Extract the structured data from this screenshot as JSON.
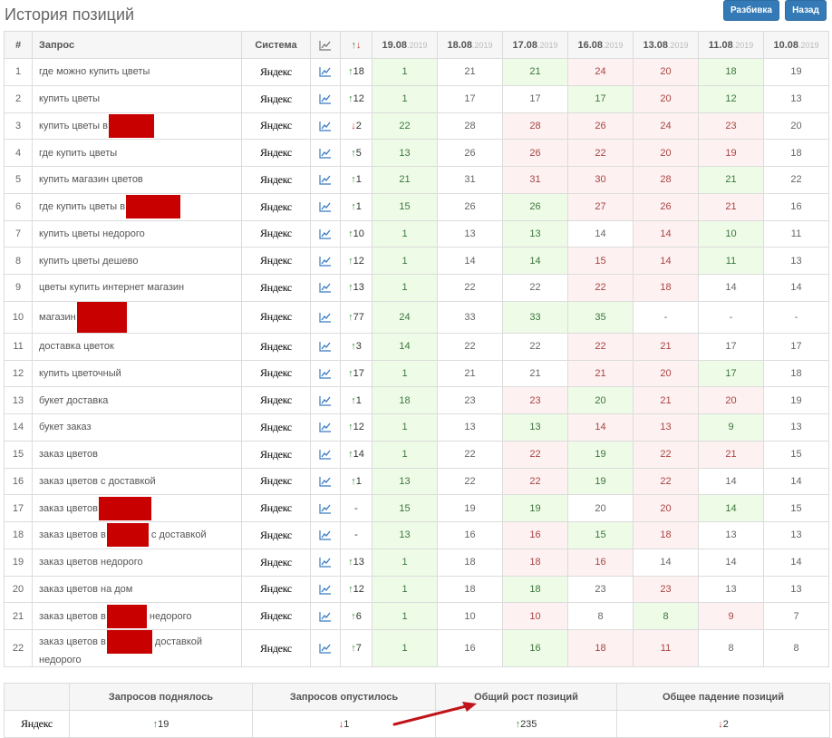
{
  "header": {
    "title": "История позиций",
    "breakdown_label": "Разбивка",
    "back_label": "Назад"
  },
  "table": {
    "columns": {
      "num": "#",
      "query": "Запрос",
      "system": "Система",
      "updown": "↑↓"
    },
    "dates": [
      {
        "d": "19.08",
        "y": ".2019"
      },
      {
        "d": "18.08",
        "y": ".2019"
      },
      {
        "d": "17.08",
        "y": ".2019"
      },
      {
        "d": "16.08",
        "y": ".2019"
      },
      {
        "d": "13.08",
        "y": ".2019"
      },
      {
        "d": "11.08",
        "y": ".2019"
      },
      {
        "d": "10.08",
        "y": ".2019"
      }
    ],
    "system_name": "Яндекс",
    "rows": [
      {
        "n": "1",
        "q": "где можно купить цветы",
        "dir": "up",
        "delta": "18",
        "p": [
          "1",
          "21",
          "21",
          "24",
          "20",
          "18",
          "19"
        ],
        "c": [
          "g",
          "w",
          "g",
          "r",
          "r",
          "g",
          "w"
        ]
      },
      {
        "n": "2",
        "q": "купить цветы",
        "dir": "up",
        "delta": "12",
        "p": [
          "1",
          "17",
          "17",
          "17",
          "20",
          "12",
          "13"
        ],
        "c": [
          "g",
          "w",
          "w",
          "g",
          "r",
          "g",
          "w"
        ]
      },
      {
        "n": "3",
        "q": "купить цветы в",
        "dir": "down",
        "delta": "2",
        "p": [
          "22",
          "28",
          "28",
          "26",
          "24",
          "23",
          "20"
        ],
        "c": [
          "g",
          "w",
          "r",
          "r",
          "r",
          "r",
          "w"
        ]
      },
      {
        "n": "4",
        "q": "где купить цветы",
        "dir": "up",
        "delta": "5",
        "p": [
          "13",
          "26",
          "26",
          "22",
          "20",
          "19",
          "18"
        ],
        "c": [
          "g",
          "w",
          "r",
          "r",
          "r",
          "r",
          "w"
        ]
      },
      {
        "n": "5",
        "q": "купить магазин цветов",
        "dir": "up",
        "delta": "1",
        "p": [
          "21",
          "31",
          "31",
          "30",
          "28",
          "21",
          "22"
        ],
        "c": [
          "g",
          "w",
          "r",
          "r",
          "r",
          "g",
          "w"
        ]
      },
      {
        "n": "6",
        "q": "где купить цветы в",
        "dir": "up",
        "delta": "1",
        "p": [
          "15",
          "26",
          "26",
          "27",
          "26",
          "21",
          "16"
        ],
        "c": [
          "g",
          "w",
          "g",
          "r",
          "r",
          "r",
          "w"
        ]
      },
      {
        "n": "7",
        "q": "купить цветы недорого",
        "dir": "up",
        "delta": "10",
        "p": [
          "1",
          "13",
          "13",
          "14",
          "14",
          "10",
          "11"
        ],
        "c": [
          "g",
          "w",
          "g",
          "w",
          "r",
          "g",
          "w"
        ]
      },
      {
        "n": "8",
        "q": "купить цветы дешево",
        "dir": "up",
        "delta": "12",
        "p": [
          "1",
          "14",
          "14",
          "15",
          "14",
          "11",
          "13"
        ],
        "c": [
          "g",
          "w",
          "g",
          "r",
          "r",
          "g",
          "w"
        ]
      },
      {
        "n": "9",
        "q": "цветы купить интернет магазин",
        "dir": "up",
        "delta": "13",
        "p": [
          "1",
          "22",
          "22",
          "22",
          "18",
          "14",
          "14"
        ],
        "c": [
          "g",
          "w",
          "w",
          "r",
          "r",
          "w",
          "w"
        ]
      },
      {
        "n": "10",
        "q": "магазин",
        "dir": "up",
        "delta": "77",
        "p": [
          "24",
          "33",
          "33",
          "35",
          "-",
          "-",
          "-"
        ],
        "c": [
          "g",
          "w",
          "g",
          "g",
          "w",
          "w",
          "w"
        ]
      },
      {
        "n": "11",
        "q": "доставка цветок",
        "dir": "up",
        "delta": "3",
        "p": [
          "14",
          "22",
          "22",
          "22",
          "21",
          "17",
          "17"
        ],
        "c": [
          "g",
          "w",
          "w",
          "r",
          "r",
          "w",
          "w"
        ]
      },
      {
        "n": "12",
        "q": "купить цветочный",
        "dir": "up",
        "delta": "17",
        "p": [
          "1",
          "21",
          "21",
          "21",
          "20",
          "17",
          "18"
        ],
        "c": [
          "g",
          "w",
          "w",
          "r",
          "r",
          "g",
          "w"
        ]
      },
      {
        "n": "13",
        "q": "букет доставка",
        "dir": "up",
        "delta": "1",
        "p": [
          "18",
          "23",
          "23",
          "20",
          "21",
          "20",
          "19"
        ],
        "c": [
          "g",
          "w",
          "r",
          "g",
          "r",
          "r",
          "w"
        ]
      },
      {
        "n": "14",
        "q": "букет заказ",
        "dir": "up",
        "delta": "12",
        "p": [
          "1",
          "13",
          "13",
          "14",
          "13",
          "9",
          "13"
        ],
        "c": [
          "g",
          "w",
          "g",
          "r",
          "r",
          "g",
          "w"
        ]
      },
      {
        "n": "15",
        "q": "заказ цветов",
        "dir": "up",
        "delta": "14",
        "p": [
          "1",
          "22",
          "22",
          "19",
          "22",
          "21",
          "15"
        ],
        "c": [
          "g",
          "w",
          "r",
          "g",
          "r",
          "r",
          "w"
        ]
      },
      {
        "n": "16",
        "q": "заказ цветов с доставкой",
        "dir": "up",
        "delta": "1",
        "p": [
          "13",
          "22",
          "22",
          "19",
          "22",
          "14",
          "14"
        ],
        "c": [
          "g",
          "w",
          "r",
          "g",
          "r",
          "w",
          "w"
        ]
      },
      {
        "n": "17",
        "q": "заказ цветов",
        "dir": "none",
        "delta": "-",
        "p": [
          "15",
          "19",
          "19",
          "20",
          "20",
          "14",
          "15"
        ],
        "c": [
          "g",
          "w",
          "g",
          "w",
          "r",
          "g",
          "w"
        ]
      },
      {
        "n": "18",
        "q": "заказ цветов в",
        "q2": "с доставкой",
        "dir": "none",
        "delta": "-",
        "p": [
          "13",
          "16",
          "16",
          "15",
          "18",
          "13",
          "13"
        ],
        "c": [
          "g",
          "w",
          "r",
          "g",
          "r",
          "w",
          "w"
        ]
      },
      {
        "n": "19",
        "q": "заказ цветов недорого",
        "dir": "up",
        "delta": "13",
        "p": [
          "1",
          "18",
          "18",
          "16",
          "14",
          "14",
          "14"
        ],
        "c": [
          "g",
          "w",
          "r",
          "r",
          "w",
          "w",
          "w"
        ]
      },
      {
        "n": "20",
        "q": "заказ цветов на дом",
        "dir": "up",
        "delta": "12",
        "p": [
          "1",
          "18",
          "18",
          "23",
          "23",
          "13",
          "13"
        ],
        "c": [
          "g",
          "w",
          "g",
          "w",
          "r",
          "w",
          "w"
        ]
      },
      {
        "n": "21",
        "q": "заказ цветов в",
        "q2": "недорого",
        "dir": "up",
        "delta": "6",
        "p": [
          "1",
          "10",
          "10",
          "8",
          "8",
          "9",
          "7"
        ],
        "c": [
          "g",
          "w",
          "r",
          "w",
          "g",
          "r",
          "w"
        ]
      },
      {
        "n": "22",
        "q": "заказ цветов в",
        "q2": "доставкой",
        "q3": "недорого",
        "dir": "up",
        "delta": "7",
        "p": [
          "1",
          "16",
          "16",
          "18",
          "11",
          "8",
          "8"
        ],
        "c": [
          "g",
          "w",
          "g",
          "r",
          "r",
          "w",
          "w"
        ]
      }
    ]
  },
  "summary": {
    "headers": [
      "Запросов поднялось",
      "Запросов опустилось",
      "Общий рост позиций",
      "Общее падение позиций"
    ],
    "system_name": "Яндекс",
    "rose": "19",
    "fell": "1",
    "total_growth": "235",
    "total_drop": "2"
  }
}
